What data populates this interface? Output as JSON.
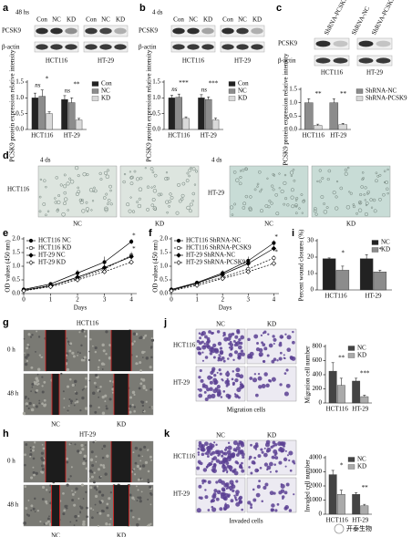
{
  "panels": {
    "a": {
      "label": "a",
      "time": "48 hs",
      "lanes": [
        "Con",
        "NC",
        "KD"
      ],
      "proteins": [
        "PCSK9",
        "β-actin"
      ],
      "cells": [
        "HCT116",
        "HT-29"
      ]
    },
    "b": {
      "label": "b",
      "time": "4 ds",
      "lanes": [
        "Con",
        "NC",
        "KD"
      ],
      "proteins": [
        "PCSK9",
        "β-actin"
      ],
      "cells": [
        "HCT116",
        "HT-29"
      ]
    },
    "c": {
      "label": "c",
      "lanes": [
        "ShRNA-PCSK9",
        "ShRNA-NC",
        "ShRNA-PCSK9"
      ],
      "proteins": [
        "PCSK9",
        "β-actin"
      ],
      "cells": [
        "HCT116",
        "HT-29"
      ]
    },
    "d": {
      "label": "d",
      "groups": [
        {
          "time": "4 ds",
          "cell": "HCT116",
          "conditions": [
            "NC",
            "KD"
          ]
        },
        {
          "time": "4 ds",
          "cell": "HT-29",
          "conditions": [
            "NC",
            "KD"
          ]
        }
      ]
    },
    "e": {
      "label": "e"
    },
    "f": {
      "label": "f"
    },
    "i": {
      "label": "i"
    },
    "g": {
      "label": "g",
      "cell": "HCT116",
      "times": [
        "0 h",
        "48 h"
      ],
      "conditions": [
        "NC",
        "KD"
      ]
    },
    "h": {
      "label": "h",
      "cell": "HT-29",
      "times": [
        "0 h",
        "48 h"
      ],
      "conditions": [
        "NC",
        "KD"
      ]
    },
    "j": {
      "label": "j",
      "conditions": [
        "NC",
        "KD"
      ],
      "cells": [
        "HCT116",
        "HT-29"
      ],
      "caption": "Migration cells"
    },
    "k": {
      "label": "k",
      "conditions": [
        "NC",
        "KD"
      ],
      "cells": [
        "HCT116",
        "HT-29"
      ],
      "caption": "Invaded cells"
    },
    "watermark": "开泰生物"
  },
  "chart_data": [
    {
      "type": "bar",
      "ylabel": "PCSK9 protein expression relative intensity",
      "categories": [
        "HCT116",
        "HT-29"
      ],
      "series": [
        {
          "name": "Con",
          "color": "#222222",
          "values": [
            1.0,
            0.95
          ],
          "errors": [
            0.15,
            0.12
          ]
        },
        {
          "name": "NC",
          "color": "#8c8c8c",
          "values": [
            1.05,
            0.85
          ],
          "errors": [
            0.2,
            0.15
          ]
        },
        {
          "name": "KD",
          "color": "#d9d9d9",
          "values": [
            0.5,
            0.3
          ],
          "errors": [
            0.06,
            0.05
          ]
        }
      ],
      "ylim": [
        0,
        1.5
      ],
      "yticks": [
        {
          "value": 0,
          "label": "0.0"
        },
        0.5,
        {
          "value": 1,
          "label": "1.0"
        },
        1.5
      ],
      "annotations": [
        [
          "ns",
          "*"
        ],
        [
          "ns",
          "**"
        ]
      ],
      "legend": "right"
    },
    {
      "type": "bar",
      "ylabel": "PCSK9 protein expression relative intensity",
      "categories": [
        "HCT116",
        "HT-29"
      ],
      "series": [
        {
          "name": "Con",
          "color": "#222222",
          "values": [
            1.0,
            1.0
          ],
          "errors": [
            0.08,
            0.1
          ]
        },
        {
          "name": "NC",
          "color": "#8c8c8c",
          "values": [
            1.02,
            0.95
          ],
          "errors": [
            0.1,
            0.08
          ]
        },
        {
          "name": "KD",
          "color": "#d9d9d9",
          "values": [
            0.35,
            0.3
          ],
          "errors": [
            0.05,
            0.06
          ]
        }
      ],
      "ylim": [
        0,
        1.5
      ],
      "yticks": [
        {
          "value": 0,
          "label": "0.0"
        },
        0.5,
        {
          "value": 1,
          "label": "1.0"
        },
        1.5
      ],
      "annotations": [
        [
          "ns",
          "***"
        ],
        [
          "ns",
          "***"
        ]
      ],
      "legend": "right"
    },
    {
      "type": "bar",
      "ylabel": "PCSK9 protein expression relative intensity",
      "categories": [
        "HCT116",
        "HT-29"
      ],
      "series": [
        {
          "name": "ShRNA-NC",
          "color": "#8c8c8c",
          "values": [
            1.0,
            1.0
          ],
          "errors": [
            0.15,
            0.15
          ]
        },
        {
          "name": "ShRNA-PCSK9",
          "color": "#d9d9d9",
          "values": [
            0.15,
            0.18
          ],
          "errors": [
            0.05,
            0.05
          ]
        }
      ],
      "ylim": [
        0,
        1.5
      ],
      "yticks": [
        {
          "value": 0,
          "label": "0.0"
        },
        0.5,
        {
          "value": 1,
          "label": "1.0"
        },
        1.5
      ],
      "annotations": [
        [
          "**"
        ],
        [
          "**"
        ]
      ],
      "legend": "right"
    },
    {
      "type": "line",
      "ylabel": "OD values (450 nm)",
      "xlabel": "Days",
      "x": [
        0,
        1,
        2,
        3,
        4
      ],
      "series": [
        {
          "name": "HCT116 NC",
          "color": "#000000",
          "marker": "circle",
          "dashed": false,
          "values": [
            0.15,
            0.35,
            0.75,
            1.15,
            1.9
          ],
          "errors": [
            0.03,
            0.05,
            0.12,
            0.2,
            0.1
          ]
        },
        {
          "name": "HCT116 KD",
          "color": "#000000",
          "marker": "circle-open",
          "dashed": true,
          "values": [
            0.12,
            0.3,
            0.55,
            0.9,
            1.4
          ],
          "errors": [
            0.03,
            0.04,
            0.08,
            0.12,
            0.12
          ]
        },
        {
          "name": "HT-29 NC",
          "color": "#000000",
          "marker": "diamond",
          "dashed": false,
          "values": [
            0.12,
            0.28,
            0.6,
            0.95,
            1.35
          ],
          "errors": [
            0.02,
            0.04,
            0.08,
            0.1,
            0.1
          ]
        },
        {
          "name": "HT-29 KD",
          "color": "#000000",
          "marker": "diamond-open",
          "dashed": true,
          "values": [
            0.1,
            0.25,
            0.5,
            0.8,
            1.15
          ],
          "errors": [
            0.02,
            0.03,
            0.06,
            0.08,
            0.08
          ]
        }
      ],
      "xlim": [
        0,
        4.2
      ],
      "xticks": [
        0,
        1,
        2,
        3,
        4
      ],
      "ylim": [
        0,
        2
      ],
      "yticks": [
        {
          "value": 0,
          "label": "0.0"
        },
        0.5,
        {
          "value": 1,
          "label": "1.0"
        },
        1.5,
        {
          "value": 2,
          "label": "2.0"
        }
      ],
      "annotations": [
        "*",
        "*"
      ],
      "legend": "upper-left"
    },
    {
      "type": "line",
      "ylabel": "OD values (450 nm)",
      "xlabel": "Days",
      "x": [
        0,
        1,
        2,
        3,
        4
      ],
      "series": [
        {
          "name": "HCT116 ShRNA-NC",
          "color": "#000000",
          "marker": "circle",
          "dashed": false,
          "values": [
            0.15,
            0.4,
            0.75,
            1.2,
            1.85
          ],
          "errors": [
            0.03,
            0.05,
            0.1,
            0.15,
            0.1
          ]
        },
        {
          "name": "HCT116 ShRNA-PCSK9",
          "color": "#000000",
          "marker": "circle-open",
          "dashed": true,
          "values": [
            0.12,
            0.35,
            0.6,
            0.9,
            1.3
          ],
          "errors": [
            0.03,
            0.04,
            0.08,
            0.1,
            0.1
          ]
        },
        {
          "name": "HT-29 ShRNA-NC",
          "color": "#000000",
          "marker": "diamond",
          "dashed": false,
          "values": [
            0.12,
            0.38,
            0.7,
            1.1,
            1.65
          ],
          "errors": [
            0.02,
            0.05,
            0.08,
            0.12,
            0.1
          ]
        },
        {
          "name": "HT-29 ShRNA-PCSK9",
          "color": "#000000",
          "marker": "diamond-open",
          "dashed": true,
          "values": [
            0.1,
            0.3,
            0.55,
            0.8,
            1.1
          ],
          "errors": [
            0.02,
            0.03,
            0.06,
            0.08,
            0.08
          ]
        }
      ],
      "xlim": [
        0,
        4.2
      ],
      "xticks": [
        0,
        1,
        2,
        3,
        4
      ],
      "ylim": [
        0,
        2
      ],
      "yticks": [
        {
          "value": 0,
          "label": "0.0"
        },
        0.5,
        {
          "value": 1,
          "label": "1.0"
        },
        1.5,
        {
          "value": 2,
          "label": "2.0"
        }
      ],
      "annotations": [
        "*",
        "*"
      ],
      "legend": "upper-left"
    },
    {
      "type": "bar",
      "ylabel": "Percent wound closures (%)",
      "categories": [
        "HCT116",
        "HT-29"
      ],
      "series": [
        {
          "name": "NC",
          "color": "#222222",
          "values": [
            19,
            19
          ],
          "errors": [
            0.5,
            2.5
          ]
        },
        {
          "name": "KD",
          "color": "#8c8c8c",
          "values": [
            12,
            11
          ],
          "errors": [
            2.5,
            1
          ]
        }
      ],
      "ylim": [
        0,
        30
      ],
      "yticks": [
        0,
        10,
        20,
        30
      ],
      "annotations": [
        [
          "*"
        ],
        [
          "*"
        ]
      ],
      "legend": "upper-right"
    },
    {
      "type": "bar",
      "ylabel": "Migration cell number",
      "categories": [
        "HCT116",
        "HT-29"
      ],
      "series": [
        {
          "name": "NC",
          "color": "#444444",
          "values": [
            450,
            310
          ],
          "errors": [
            120,
            40
          ]
        },
        {
          "name": "KD",
          "color": "#aaaaaa",
          "values": [
            250,
            90
          ],
          "errors": [
            100,
            20
          ]
        }
      ],
      "ylim": [
        0,
        800
      ],
      "yticks": [
        0,
        200,
        400,
        600,
        800
      ],
      "annotations": [
        [
          "**"
        ],
        [
          "***"
        ]
      ],
      "legend": "upper-right"
    },
    {
      "type": "bar",
      "ylabel": "Invaded cell number",
      "categories": [
        "HCT116",
        "HT-29"
      ],
      "series": [
        {
          "name": "NC",
          "color": "#444444",
          "values": [
            2800,
            1400
          ],
          "errors": [
            300,
            120
          ]
        },
        {
          "name": "KD",
          "color": "#aaaaaa",
          "values": [
            1400,
            600
          ],
          "errors": [
            300,
            100
          ]
        }
      ],
      "ylim": [
        0,
        4000
      ],
      "yticks": [
        0,
        1000,
        2000,
        3000,
        4000
      ],
      "annotations": [
        [
          "*"
        ],
        [
          "**"
        ]
      ],
      "legend": "upper-right"
    }
  ]
}
